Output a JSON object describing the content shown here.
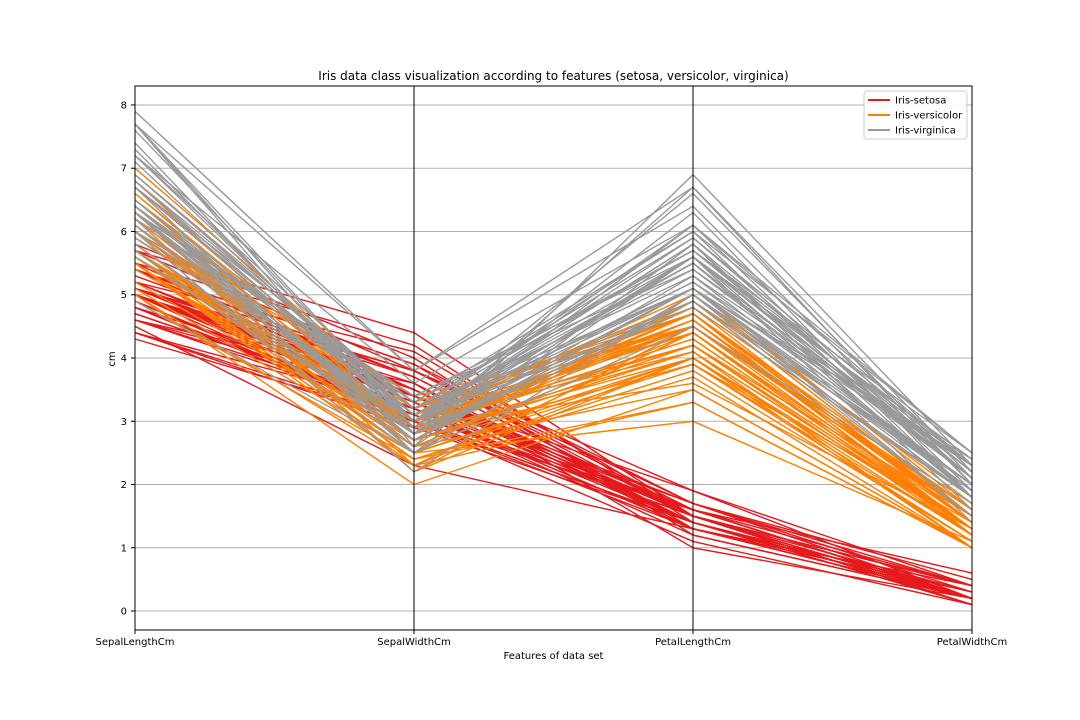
{
  "chart_data": {
    "type": "line",
    "title": "Iris data class visualization according to features (setosa, versicolor, virginica)",
    "xlabel": "Features of data set",
    "ylabel": "cm",
    "categories": [
      "SepalLengthCm",
      "SepalWidthCm",
      "PetalLengthCm",
      "PetalWidthCm"
    ],
    "ylim": [
      -0.3,
      8.3
    ],
    "yticks": [
      "0",
      "1",
      "2",
      "3",
      "4",
      "5",
      "6",
      "7",
      "8"
    ],
    "grid": "horizontal",
    "legend_position": "top-right",
    "series": [
      {
        "name": "Iris-setosa",
        "color": "#e41a1c",
        "lines": [
          [
            5.1,
            3.5,
            1.4,
            0.2
          ],
          [
            4.9,
            3.0,
            1.4,
            0.2
          ],
          [
            4.7,
            3.2,
            1.3,
            0.2
          ],
          [
            4.6,
            3.1,
            1.5,
            0.2
          ],
          [
            5.0,
            3.6,
            1.4,
            0.2
          ],
          [
            5.4,
            3.9,
            1.7,
            0.4
          ],
          [
            4.6,
            3.4,
            1.4,
            0.3
          ],
          [
            5.0,
            3.4,
            1.5,
            0.2
          ],
          [
            4.4,
            2.9,
            1.4,
            0.2
          ],
          [
            4.9,
            3.1,
            1.5,
            0.1
          ],
          [
            5.4,
            3.7,
            1.5,
            0.2
          ],
          [
            4.8,
            3.4,
            1.6,
            0.2
          ],
          [
            4.8,
            3.0,
            1.4,
            0.1
          ],
          [
            4.3,
            3.0,
            1.1,
            0.1
          ],
          [
            5.8,
            4.0,
            1.2,
            0.2
          ],
          [
            5.7,
            4.4,
            1.5,
            0.4
          ],
          [
            5.4,
            3.9,
            1.3,
            0.4
          ],
          [
            5.1,
            3.5,
            1.4,
            0.3
          ],
          [
            5.7,
            3.8,
            1.7,
            0.3
          ],
          [
            5.1,
            3.8,
            1.5,
            0.3
          ],
          [
            5.4,
            3.4,
            1.7,
            0.2
          ],
          [
            5.1,
            3.7,
            1.5,
            0.4
          ],
          [
            4.6,
            3.6,
            1.0,
            0.2
          ],
          [
            5.1,
            3.3,
            1.7,
            0.5
          ],
          [
            4.8,
            3.4,
            1.9,
            0.2
          ],
          [
            5.0,
            3.0,
            1.6,
            0.2
          ],
          [
            5.0,
            3.4,
            1.6,
            0.4
          ],
          [
            5.2,
            3.5,
            1.5,
            0.2
          ],
          [
            5.2,
            3.4,
            1.4,
            0.2
          ],
          [
            4.7,
            3.2,
            1.6,
            0.2
          ],
          [
            4.8,
            3.1,
            1.6,
            0.2
          ],
          [
            5.4,
            3.4,
            1.5,
            0.4
          ],
          [
            5.2,
            4.1,
            1.5,
            0.1
          ],
          [
            5.5,
            4.2,
            1.4,
            0.2
          ],
          [
            4.9,
            3.1,
            1.5,
            0.1
          ],
          [
            5.0,
            3.2,
            1.2,
            0.2
          ],
          [
            5.5,
            3.5,
            1.3,
            0.2
          ],
          [
            4.4,
            3.0,
            1.3,
            0.2
          ],
          [
            5.1,
            3.4,
            1.5,
            0.2
          ],
          [
            5.0,
            3.5,
            1.3,
            0.3
          ],
          [
            4.5,
            2.3,
            1.3,
            0.3
          ],
          [
            4.4,
            3.2,
            1.3,
            0.2
          ],
          [
            5.0,
            3.5,
            1.6,
            0.6
          ],
          [
            5.1,
            3.8,
            1.9,
            0.4
          ],
          [
            4.8,
            3.0,
            1.4,
            0.3
          ],
          [
            5.1,
            3.8,
            1.6,
            0.2
          ],
          [
            4.6,
            3.2,
            1.4,
            0.2
          ],
          [
            5.3,
            3.7,
            1.5,
            0.2
          ],
          [
            5.0,
            3.3,
            1.4,
            0.2
          ]
        ]
      },
      {
        "name": "Iris-versicolor",
        "color": "#ff7f00",
        "lines": [
          [
            7.0,
            3.2,
            4.7,
            1.4
          ],
          [
            6.4,
            3.2,
            4.5,
            1.5
          ],
          [
            6.9,
            3.1,
            4.9,
            1.5
          ],
          [
            5.5,
            2.3,
            4.0,
            1.3
          ],
          [
            6.5,
            2.8,
            4.6,
            1.5
          ],
          [
            5.7,
            2.8,
            4.5,
            1.3
          ],
          [
            6.3,
            3.3,
            4.7,
            1.6
          ],
          [
            4.9,
            2.4,
            3.3,
            1.0
          ],
          [
            6.6,
            2.9,
            4.6,
            1.3
          ],
          [
            5.2,
            2.7,
            3.9,
            1.4
          ],
          [
            5.0,
            2.0,
            3.5,
            1.0
          ],
          [
            5.9,
            3.0,
            4.2,
            1.5
          ],
          [
            6.0,
            2.2,
            4.0,
            1.0
          ],
          [
            6.1,
            2.9,
            4.7,
            1.4
          ],
          [
            5.6,
            2.9,
            3.6,
            1.3
          ],
          [
            6.7,
            3.1,
            4.4,
            1.4
          ],
          [
            5.6,
            3.0,
            4.5,
            1.5
          ],
          [
            5.8,
            2.7,
            4.1,
            1.0
          ],
          [
            6.2,
            2.2,
            4.5,
            1.5
          ],
          [
            5.6,
            2.5,
            3.9,
            1.1
          ],
          [
            5.9,
            3.2,
            4.8,
            1.8
          ],
          [
            6.1,
            2.8,
            4.0,
            1.3
          ],
          [
            6.3,
            2.5,
            4.9,
            1.5
          ],
          [
            6.1,
            2.8,
            4.7,
            1.2
          ],
          [
            6.4,
            2.9,
            4.3,
            1.3
          ],
          [
            6.6,
            3.0,
            4.4,
            1.4
          ],
          [
            6.8,
            2.8,
            4.8,
            1.4
          ],
          [
            6.7,
            3.0,
            5.0,
            1.7
          ],
          [
            6.0,
            2.9,
            4.5,
            1.5
          ],
          [
            5.7,
            2.6,
            3.5,
            1.0
          ],
          [
            5.5,
            2.4,
            3.8,
            1.1
          ],
          [
            5.5,
            2.4,
            3.7,
            1.0
          ],
          [
            5.8,
            2.7,
            3.9,
            1.2
          ],
          [
            6.0,
            2.7,
            5.1,
            1.6
          ],
          [
            5.4,
            3.0,
            4.5,
            1.5
          ],
          [
            6.0,
            3.4,
            4.5,
            1.6
          ],
          [
            6.7,
            3.1,
            4.7,
            1.5
          ],
          [
            6.3,
            2.3,
            4.4,
            1.3
          ],
          [
            5.6,
            3.0,
            4.1,
            1.3
          ],
          [
            5.5,
            2.5,
            4.0,
            1.3
          ],
          [
            5.5,
            2.6,
            4.4,
            1.2
          ],
          [
            6.1,
            3.0,
            4.6,
            1.4
          ],
          [
            5.8,
            2.6,
            4.0,
            1.2
          ],
          [
            5.0,
            2.3,
            3.3,
            1.0
          ],
          [
            5.6,
            2.7,
            4.2,
            1.3
          ],
          [
            5.7,
            3.0,
            4.2,
            1.2
          ],
          [
            5.7,
            2.9,
            4.2,
            1.3
          ],
          [
            6.2,
            2.9,
            4.3,
            1.3
          ],
          [
            5.1,
            2.5,
            3.0,
            1.1
          ],
          [
            5.7,
            2.8,
            4.1,
            1.3
          ]
        ]
      },
      {
        "name": "Iris-virginica",
        "color": "#999999",
        "lines": [
          [
            6.3,
            3.3,
            6.0,
            2.5
          ],
          [
            5.8,
            2.7,
            5.1,
            1.9
          ],
          [
            7.1,
            3.0,
            5.9,
            2.1
          ],
          [
            6.3,
            2.9,
            5.6,
            1.8
          ],
          [
            6.5,
            3.0,
            5.8,
            2.2
          ],
          [
            7.6,
            3.0,
            6.6,
            2.1
          ],
          [
            4.9,
            2.5,
            4.5,
            1.7
          ],
          [
            7.3,
            2.9,
            6.3,
            1.8
          ],
          [
            6.7,
            2.5,
            5.8,
            1.8
          ],
          [
            7.2,
            3.6,
            6.1,
            2.5
          ],
          [
            6.5,
            3.2,
            5.1,
            2.0
          ],
          [
            6.4,
            2.7,
            5.3,
            1.9
          ],
          [
            6.8,
            3.0,
            5.5,
            2.1
          ],
          [
            5.7,
            2.5,
            5.0,
            2.0
          ],
          [
            5.8,
            2.8,
            5.1,
            2.4
          ],
          [
            6.4,
            3.2,
            5.3,
            2.3
          ],
          [
            6.5,
            3.0,
            5.5,
            1.8
          ],
          [
            7.7,
            3.8,
            6.7,
            2.2
          ],
          [
            7.7,
            2.6,
            6.9,
            2.3
          ],
          [
            6.0,
            2.2,
            5.0,
            1.5
          ],
          [
            6.9,
            3.2,
            5.7,
            2.3
          ],
          [
            5.6,
            2.8,
            4.9,
            2.0
          ],
          [
            7.7,
            2.8,
            6.7,
            2.0
          ],
          [
            6.3,
            2.7,
            4.9,
            1.8
          ],
          [
            6.7,
            3.3,
            5.7,
            2.1
          ],
          [
            7.2,
            3.2,
            6.0,
            1.8
          ],
          [
            6.2,
            2.8,
            4.8,
            1.8
          ],
          [
            6.1,
            3.0,
            4.9,
            1.8
          ],
          [
            6.4,
            2.8,
            5.6,
            2.1
          ],
          [
            7.2,
            3.0,
            5.8,
            1.6
          ],
          [
            7.4,
            2.8,
            6.1,
            1.9
          ],
          [
            7.9,
            3.8,
            6.4,
            2.0
          ],
          [
            6.4,
            2.8,
            5.6,
            2.2
          ],
          [
            6.3,
            2.8,
            5.1,
            1.5
          ],
          [
            6.1,
            2.6,
            5.6,
            1.4
          ],
          [
            7.7,
            3.0,
            6.1,
            2.3
          ],
          [
            6.3,
            3.4,
            5.6,
            2.4
          ],
          [
            6.4,
            3.1,
            5.5,
            1.8
          ],
          [
            6.0,
            3.0,
            4.8,
            1.8
          ],
          [
            6.9,
            3.1,
            5.4,
            2.1
          ],
          [
            6.7,
            3.1,
            5.6,
            2.4
          ],
          [
            6.9,
            3.1,
            5.1,
            2.3
          ],
          [
            6.8,
            3.2,
            5.9,
            2.3
          ],
          [
            6.7,
            3.3,
            5.7,
            2.5
          ],
          [
            6.7,
            3.0,
            5.2,
            2.3
          ],
          [
            6.3,
            2.5,
            5.0,
            1.9
          ],
          [
            6.5,
            3.0,
            5.2,
            2.0
          ],
          [
            6.2,
            3.4,
            5.4,
            2.3
          ],
          [
            5.9,
            3.0,
            5.1,
            1.8
          ]
        ]
      }
    ]
  }
}
